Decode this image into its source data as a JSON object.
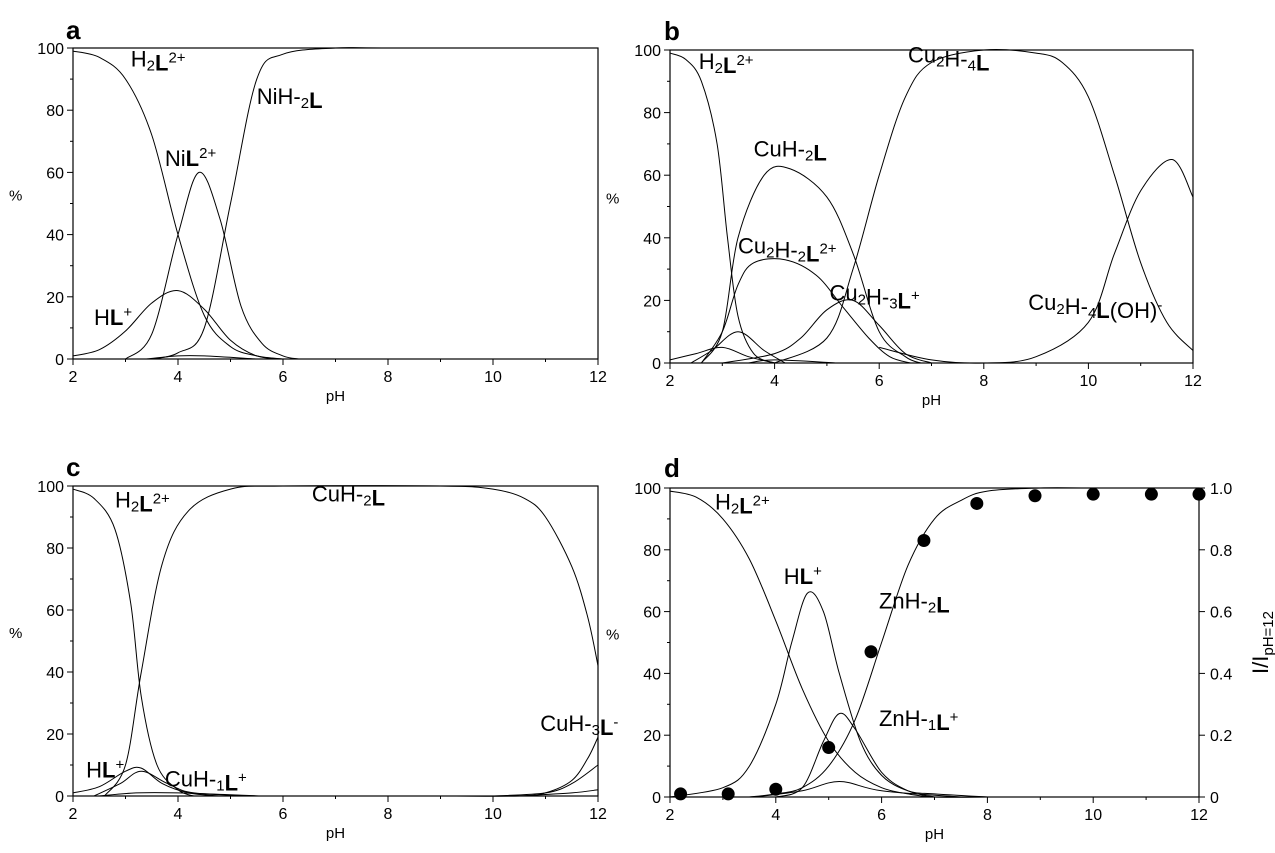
{
  "chart_data": [
    {
      "panel": "a",
      "type": "line",
      "xlabel": "pH",
      "ylabel": "%",
      "xlim": [
        2,
        12
      ],
      "ylim": [
        0,
        100
      ],
      "xticks": [
        2,
        4,
        6,
        8,
        10,
        12
      ],
      "yticks": [
        0,
        20,
        40,
        60,
        80,
        100
      ],
      "series": [
        {
          "name": "H2L2+",
          "label_parts": [
            [
              "H",
              "n"
            ],
            [
              "2",
              "sub"
            ],
            [
              "L",
              "b"
            ],
            [
              "2+",
              "sup"
            ]
          ],
          "label_at": [
            3.1,
            94
          ],
          "x": [
            2,
            2.5,
            3,
            3.5,
            4,
            4.5,
            5,
            5.5,
            6
          ],
          "y": [
            99,
            97,
            90,
            72,
            40,
            14,
            4,
            1,
            0
          ]
        },
        {
          "name": "HL+",
          "label_parts": [
            [
              "H",
              "n"
            ],
            [
              "L",
              "b"
            ],
            [
              "+",
              "sup"
            ]
          ],
          "label_at": [
            2.4,
            11
          ],
          "x": [
            2,
            2.5,
            3,
            3.5,
            4,
            4.5,
            5,
            5.5,
            6
          ],
          "y": [
            1,
            3,
            9,
            18,
            22,
            16,
            6,
            1,
            0
          ]
        },
        {
          "name": "NiL2+",
          "label_parts": [
            [
              "Ni",
              "n"
            ],
            [
              "L",
              "b"
            ],
            [
              "2+",
              "sup"
            ]
          ],
          "label_at": [
            3.75,
            62
          ],
          "x": [
            3,
            3.5,
            4,
            4.4,
            4.8,
            5.2,
            5.6,
            6,
            6.3
          ],
          "y": [
            0,
            8,
            40,
            60,
            45,
            17,
            5,
            1,
            0
          ]
        },
        {
          "name": "NiH-2L",
          "label_parts": [
            [
              "NiH-",
              "n"
            ],
            [
              "2",
              "sub"
            ],
            [
              "L",
              "b"
            ]
          ],
          "label_at": [
            5.5,
            82
          ],
          "x": [
            3.5,
            4,
            4.5,
            5,
            5.5,
            6,
            7,
            8,
            12
          ],
          "y": [
            0,
            2,
            10,
            50,
            90,
            98,
            100,
            100,
            100
          ]
        },
        {
          "name": "minor species",
          "label_parts": [],
          "label_at": null,
          "x": [
            3.4,
            4,
            4.5,
            5.5
          ],
          "y": [
            0,
            1,
            1,
            0
          ]
        }
      ]
    },
    {
      "panel": "b",
      "type": "line",
      "xlabel": "pH",
      "ylabel": "%",
      "xlim": [
        2,
        12
      ],
      "ylim": [
        0,
        100
      ],
      "xticks": [
        2,
        4,
        6,
        8,
        10,
        12
      ],
      "yticks": [
        0,
        20,
        40,
        60,
        80,
        100
      ],
      "series": [
        {
          "name": "H2L2+",
          "label_parts": [
            [
              "H",
              "n"
            ],
            [
              "2",
              "sub"
            ],
            [
              "L",
              "b"
            ],
            [
              "2+",
              "sup"
            ]
          ],
          "label_at": [
            2.55,
            94
          ],
          "x": [
            2,
            2.3,
            2.6,
            2.9,
            3.1,
            3.3,
            3.6,
            4
          ],
          "y": [
            99,
            97,
            90,
            70,
            40,
            15,
            3,
            0
          ]
        },
        {
          "name": "CuH-2L",
          "label_parts": [
            [
              "CuH-",
              "n"
            ],
            [
              "2",
              "sub"
            ],
            [
              "L",
              "b"
            ]
          ],
          "label_at": [
            3.6,
            66
          ],
          "x": [
            2.6,
            3,
            3.3,
            3.8,
            4.3,
            5,
            5.5,
            6,
            6.5,
            6.8
          ],
          "y": [
            0,
            10,
            40,
            60,
            62,
            53,
            35,
            10,
            2,
            0
          ]
        },
        {
          "name": "Cu2H-2L2+",
          "label_parts": [
            [
              "Cu",
              "n"
            ],
            [
              "2",
              "sub"
            ],
            [
              "H-",
              "n"
            ],
            [
              "2",
              "sub"
            ],
            [
              "L",
              "b"
            ],
            [
              "2+",
              "sup"
            ]
          ],
          "label_at": [
            3.3,
            35
          ],
          "x": [
            2.6,
            3,
            3.3,
            3.6,
            4.2,
            4.8,
            5.3,
            5.8,
            6.2,
            6.6
          ],
          "y": [
            0,
            10,
            25,
            32,
            33,
            28,
            18,
            8,
            2,
            0
          ]
        },
        {
          "name": "Cu2H-3L+",
          "label_parts": [
            [
              "Cu",
              "n"
            ],
            [
              "2",
              "sub"
            ],
            [
              "H-",
              "n"
            ],
            [
              "3",
              "sub"
            ],
            [
              "L",
              "b"
            ],
            [
              "+",
              "sup"
            ]
          ],
          "label_at": [
            5.05,
            20
          ],
          "x": [
            3,
            4,
            4.5,
            5,
            5.5,
            6,
            6.5,
            7
          ],
          "y": [
            0,
            3,
            8,
            17,
            20,
            12,
            3,
            0
          ]
        },
        {
          "name": "Cu2H-4L",
          "label_parts": [
            [
              "Cu",
              "n"
            ],
            [
              "2",
              "sub"
            ],
            [
              "H-",
              "n"
            ],
            [
              "4",
              "sub"
            ],
            [
              "L",
              "b"
            ]
          ],
          "label_at": [
            6.55,
            96
          ],
          "x": [
            4,
            5,
            5.5,
            6,
            6.5,
            7,
            8,
            9,
            9.5,
            10,
            10.5,
            11,
            11.5,
            12
          ],
          "y": [
            0,
            8,
            30,
            60,
            85,
            96,
            100,
            99,
            96,
            85,
            60,
            32,
            13,
            4
          ]
        },
        {
          "name": "Cu2H-4L(OH)-",
          "label_parts": [
            [
              "Cu",
              "n"
            ],
            [
              "2",
              "sub"
            ],
            [
              "H-",
              "n"
            ],
            [
              "4",
              "sub"
            ],
            [
              "L",
              "b"
            ],
            [
              "(OH)",
              "n"
            ],
            [
              "-",
              "sup"
            ]
          ],
          "label_at": [
            8.85,
            17
          ],
          "x": [
            6,
            7,
            8,
            9,
            10,
            10.5,
            11,
            11.6,
            12
          ],
          "y": [
            5,
            1,
            0,
            2,
            13,
            35,
            55,
            65,
            53
          ]
        },
        {
          "name": "HL+",
          "label_parts": [],
          "label_at": null,
          "x": [
            2,
            2.5,
            3,
            3.5,
            4
          ],
          "y": [
            1,
            3,
            5,
            2,
            0
          ]
        },
        {
          "name": "minor species 1",
          "label_parts": [],
          "label_at": null,
          "x": [
            2.4,
            2.8,
            3.3,
            3.8,
            4.2
          ],
          "y": [
            0,
            4,
            10,
            4,
            0
          ]
        },
        {
          "name": "minor species 2",
          "label_parts": [],
          "label_at": null,
          "x": [
            3.5,
            4,
            5.2
          ],
          "y": [
            0,
            1,
            0
          ]
        }
      ]
    },
    {
      "panel": "c",
      "type": "line",
      "xlabel": "pH",
      "ylabel": "%",
      "xlim": [
        2,
        12
      ],
      "ylim": [
        0,
        100
      ],
      "xticks": [
        2,
        4,
        6,
        8,
        10,
        12
      ],
      "yticks": [
        0,
        20,
        40,
        60,
        80,
        100
      ],
      "series": [
        {
          "name": "H2L2+",
          "label_parts": [
            [
              "H",
              "n"
            ],
            [
              "2",
              "sub"
            ],
            [
              "L",
              "b"
            ],
            [
              "2+",
              "sup"
            ]
          ],
          "label_at": [
            2.8,
            93
          ],
          "x": [
            2,
            2.4,
            2.8,
            3.1,
            3.3,
            3.6,
            4,
            4.3
          ],
          "y": [
            99,
            96,
            86,
            62,
            32,
            10,
            2,
            0
          ]
        },
        {
          "name": "CuH-2L",
          "label_parts": [
            [
              "CuH-",
              "n"
            ],
            [
              "2",
              "sub"
            ],
            [
              "L",
              "b"
            ]
          ],
          "label_at": [
            6.55,
            95
          ],
          "x": [
            2.6,
            3,
            3.3,
            3.7,
            4.2,
            5,
            6,
            9,
            10,
            10.6,
            11,
            11.5,
            11.8,
            12
          ],
          "y": [
            0,
            10,
            40,
            75,
            92,
            99,
            100,
            100,
            99,
            96,
            90,
            74,
            58,
            42
          ]
        },
        {
          "name": "HL+",
          "label_parts": [
            [
              "H",
              "n"
            ],
            [
              "L",
              "b"
            ],
            [
              "+",
              "sup"
            ]
          ],
          "label_at": [
            2.25,
            6
          ],
          "x": [
            2,
            2.5,
            3,
            3.3,
            3.7,
            4.2,
            4.8
          ],
          "y": [
            1,
            3,
            8,
            9,
            4,
            1,
            0
          ]
        },
        {
          "name": "CuH-1L+",
          "label_parts": [
            [
              "CuH-",
              "n"
            ],
            [
              "1",
              "sub"
            ],
            [
              "L",
              "b"
            ],
            [
              "+",
              "sup"
            ]
          ],
          "label_at": [
            3.75,
            3
          ],
          "x": [
            2.4,
            2.9,
            3.3,
            3.8,
            4.3,
            5.5
          ],
          "y": [
            0,
            4,
            8,
            4,
            1,
            0
          ]
        },
        {
          "name": "CuH-3L-",
          "label_parts": [
            [
              "CuH-",
              "n"
            ],
            [
              "3",
              "sub"
            ],
            [
              "L",
              "b"
            ],
            [
              "-",
              "sup"
            ]
          ],
          "label_at": [
            10.9,
            21
          ],
          "x": [
            9.3,
            10.5,
            11,
            11.5,
            11.8,
            12
          ],
          "y": [
            0,
            0,
            1,
            5,
            12,
            19
          ]
        },
        {
          "name": "minor species 1",
          "label_parts": [],
          "label_at": null,
          "x": [
            10,
            11,
            11.5,
            12
          ],
          "y": [
            0,
            1,
            4,
            10
          ]
        },
        {
          "name": "minor species 2",
          "label_parts": [],
          "label_at": null,
          "x": [
            2.5,
            3.2,
            4,
            5.6
          ],
          "y": [
            0,
            1,
            1,
            0
          ]
        },
        {
          "name": "minor species 3",
          "label_parts": [],
          "label_at": null,
          "x": [
            10.5,
            11.5,
            12
          ],
          "y": [
            0,
            1,
            2
          ]
        }
      ]
    },
    {
      "panel": "d",
      "type": "line",
      "xlabel": "pH",
      "ylabel": "%",
      "y2label": "I/IpH=12",
      "y2label_parts": [
        [
          "I/I",
          "n"
        ],
        [
          "pH=12",
          "sub"
        ]
      ],
      "xlim": [
        2,
        12
      ],
      "ylim": [
        0,
        100
      ],
      "y2lim": [
        0,
        1.0
      ],
      "xticks": [
        2,
        4,
        6,
        8,
        10,
        12
      ],
      "yticks": [
        0,
        20,
        40,
        60,
        80,
        100
      ],
      "y2ticks": [
        "0",
        "0.2",
        "0.4",
        "0.6",
        "0.8",
        "1.0"
      ],
      "series": [
        {
          "name": "H2L2+",
          "label_parts": [
            [
              "H",
              "n"
            ],
            [
              "2",
              "sub"
            ],
            [
              "L",
              "b"
            ],
            [
              "2+",
              "sup"
            ]
          ],
          "label_at": [
            2.85,
            93
          ],
          "x": [
            2,
            2.5,
            3,
            3.5,
            4,
            4.5,
            5,
            5.5,
            6,
            6.5,
            7,
            8
          ],
          "y": [
            99,
            97,
            90,
            77,
            57,
            35,
            18,
            8,
            3,
            1,
            0,
            0
          ]
        },
        {
          "name": "HL+",
          "label_parts": [
            [
              "H",
              "n"
            ],
            [
              "L",
              "b"
            ],
            [
              "+",
              "sup"
            ]
          ],
          "label_at": [
            4.15,
            69
          ],
          "x": [
            2,
            3,
            3.5,
            4,
            4.3,
            4.6,
            4.9,
            5.2,
            5.6,
            6,
            6.5,
            7,
            8
          ],
          "y": [
            0,
            3,
            10,
            30,
            50,
            66,
            60,
            40,
            18,
            7,
            2,
            1,
            0
          ]
        },
        {
          "name": "ZnH-2L",
          "label_parts": [
            [
              "ZnH-",
              "n"
            ],
            [
              "2",
              "sub"
            ],
            [
              "L",
              "b"
            ]
          ],
          "label_at": [
            5.95,
            61
          ],
          "x": [
            3.5,
            4,
            4.5,
            5,
            5.5,
            6,
            6.5,
            7,
            7.5,
            8,
            9,
            10,
            12
          ],
          "y": [
            0,
            1,
            3,
            10,
            25,
            50,
            75,
            90,
            96,
            99,
            100,
            100,
            100
          ]
        },
        {
          "name": "ZnH-1L+",
          "label_parts": [
            [
              "ZnH-",
              "n"
            ],
            [
              "1",
              "sub"
            ],
            [
              "L",
              "b"
            ],
            [
              "+",
              "sup"
            ]
          ],
          "label_at": [
            5.95,
            23
          ],
          "x": [
            4,
            4.5,
            4.9,
            5.2,
            5.5,
            6,
            6.5,
            7
          ],
          "y": [
            0,
            3,
            18,
            27,
            22,
            8,
            2,
            0
          ]
        },
        {
          "name": "minor species",
          "label_parts": [],
          "label_at": null,
          "x": [
            3.6,
            4.5,
            5.2,
            6,
            7.5
          ],
          "y": [
            0,
            2,
            5,
            2,
            0
          ]
        }
      ],
      "points": {
        "name": "I/IpH=12",
        "x": [
          2.2,
          3.1,
          4.0,
          5.0,
          5.8,
          6.8,
          7.8,
          8.9,
          10.0,
          11.1,
          12.0
        ],
        "y": [
          0.01,
          0.01,
          0.025,
          0.16,
          0.47,
          0.83,
          0.95,
          0.975,
          0.98,
          0.98,
          0.98
        ]
      }
    }
  ]
}
